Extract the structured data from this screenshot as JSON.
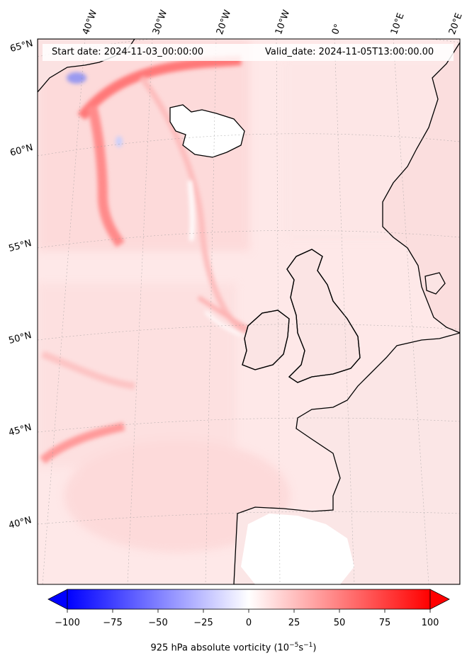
{
  "header": {
    "start_date": "Start date: 2024-11-03_00:00:00",
    "valid_date": "Valid_date: 2024-11-05T13:00:00.00"
  },
  "longitude_labels": [
    "40°W",
    "30°W",
    "20°W",
    "10°W",
    "0°",
    "10°E",
    "20°E"
  ],
  "latitude_labels": [
    "65°N",
    "60°N",
    "55°N",
    "50°N",
    "45°N",
    "40°N"
  ],
  "colorbar": {
    "ticks": [
      "−100",
      "−75",
      "−50",
      "−25",
      "0",
      "25",
      "50",
      "75",
      "100"
    ],
    "label_prefix": "925 hPa absolute vorticity (10",
    "label_exp1": "−5",
    "label_mid": "s",
    "label_exp2": "−1",
    "label_suffix": ")",
    "min": -100,
    "max": 100,
    "colors": {
      "low": "#0000ff",
      "mid": "#ffffff",
      "high": "#ff0000"
    }
  },
  "map": {
    "extent": "North Atlantic and Western Europe",
    "land_color": "#ffffff",
    "coastline_color": "#000000"
  }
}
